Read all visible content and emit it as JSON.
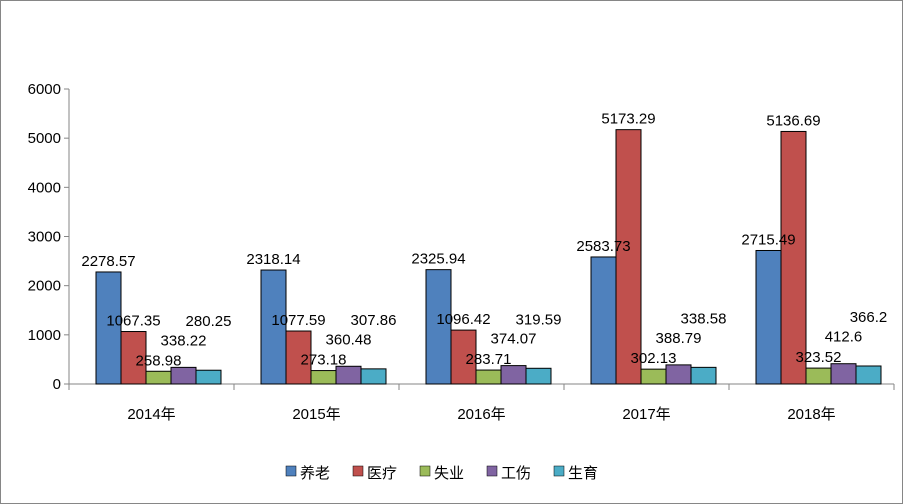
{
  "chart_data": {
    "type": "bar",
    "title": "",
    "xlabel": "",
    "ylabel": "",
    "ylim": [
      0,
      6000
    ],
    "yticks": [
      "0",
      "1000",
      "2000",
      "3000",
      "4000",
      "5000",
      "6000"
    ],
    "grid": false,
    "legend_position": "bottom",
    "categories": [
      "2014年",
      "2015年",
      "2016年",
      "2017年",
      "2018年"
    ],
    "series": [
      {
        "name": "养老",
        "color": "#4F81BD",
        "values": [
          2278.57,
          2318.14,
          2325.94,
          2583.73,
          2715.49
        ],
        "labels": [
          "2278.57",
          "2318.14",
          "2325.94",
          "2583.73",
          "2715.49"
        ]
      },
      {
        "name": "医疗",
        "color": "#C0504D",
        "values": [
          1067.35,
          1077.59,
          1096.42,
          5173.29,
          5136.69
        ],
        "labels": [
          "1067.35",
          "1077.59",
          "1096.42",
          "5173.29",
          "5136.69"
        ]
      },
      {
        "name": "失业",
        "color": "#9BBB59",
        "values": [
          258.98,
          273.18,
          283.71,
          302.13,
          323.52
        ],
        "labels": [
          "258.98",
          "273.18",
          "283.71",
          "302.13",
          "323.52"
        ]
      },
      {
        "name": "工伤",
        "color": "#8064A2",
        "values": [
          338.22,
          360.48,
          374.07,
          388.79,
          412.6
        ],
        "labels": [
          "338.22",
          "360.48",
          "374.07",
          "388.79",
          "412.6"
        ]
      },
      {
        "name": "生育",
        "color": "#4BACC6",
        "values": [
          280.25,
          307.86,
          319.59,
          338.58,
          366.2
        ],
        "labels": [
          "280.25",
          "307.86",
          "319.59",
          "338.58",
          "366.2"
        ]
      }
    ]
  }
}
